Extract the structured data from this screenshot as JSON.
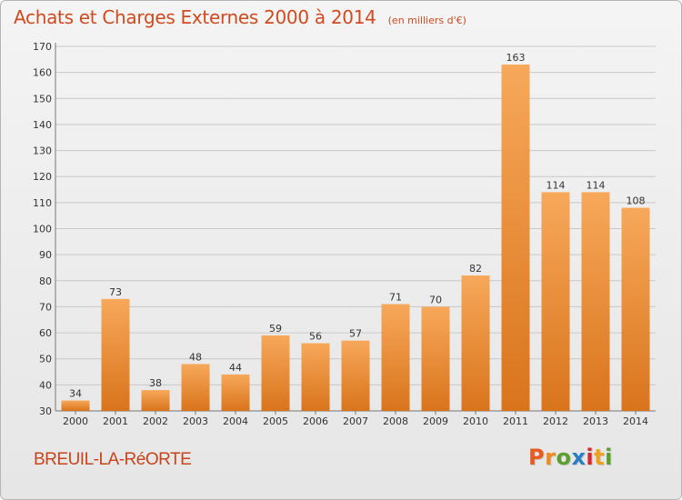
{
  "header": {
    "title": "Achats et Charges Externes 2000 à 2014",
    "subtitle": "(en milliers d'€)"
  },
  "footer": {
    "place_name": "BREUIL-LA-RéORTE",
    "brand": "Proxiti",
    "brand_letters": [
      {
        "char": "P",
        "color": "#e85a1e"
      },
      {
        "char": "r",
        "color": "#f08a1c"
      },
      {
        "char": "o",
        "color": "#5aa02c"
      },
      {
        "char": "x",
        "color": "#2a7fc4"
      },
      {
        "char": "i",
        "color": "#d8262d"
      },
      {
        "char": "t",
        "color": "#f0a21c"
      },
      {
        "char": "i",
        "color": "#5aa02c"
      }
    ]
  },
  "colors": {
    "bar_light": "#f7a85a",
    "bar_dark": "#d9741c",
    "grid": "#c8c8c8",
    "title": "#d04a1e"
  },
  "chart_data": {
    "type": "bar",
    "title": "Achats et Charges Externes 2000 à 2014",
    "subtitle": "(en milliers d'€)",
    "xlabel": "",
    "ylabel": "",
    "categories": [
      "2000",
      "2001",
      "2002",
      "2003",
      "2004",
      "2005",
      "2006",
      "2007",
      "2008",
      "2009",
      "2010",
      "2011",
      "2012",
      "2013",
      "2014"
    ],
    "values": [
      34,
      73,
      38,
      48,
      44,
      59,
      56,
      57,
      71,
      70,
      82,
      163,
      114,
      114,
      108
    ],
    "ylim": [
      30,
      170
    ],
    "yticks": [
      30,
      40,
      50,
      60,
      70,
      80,
      90,
      100,
      110,
      120,
      130,
      140,
      150,
      160,
      170
    ],
    "grid": true,
    "data_labels": true
  }
}
